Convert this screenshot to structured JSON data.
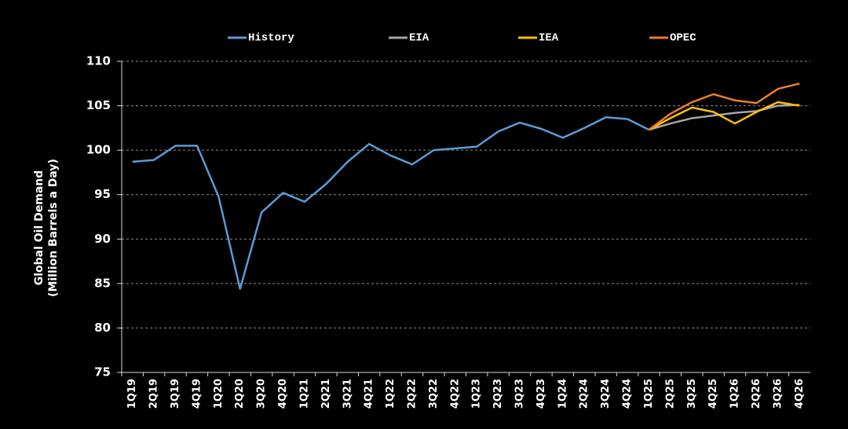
{
  "chart_data": {
    "type": "line",
    "ylabel": [
      "Global Oil Demand",
      "(Million Barrels a Day)"
    ],
    "categories": [
      "1Q19",
      "2Q19",
      "3Q19",
      "4Q19",
      "1Q20",
      "2Q20",
      "3Q20",
      "4Q20",
      "1Q21",
      "2Q21",
      "3Q21",
      "4Q21",
      "1Q22",
      "2Q22",
      "3Q22",
      "4Q22",
      "1Q23",
      "2Q23",
      "3Q23",
      "4Q23",
      "1Q24",
      "2Q24",
      "3Q24",
      "4Q24",
      "1Q25",
      "2Q25",
      "3Q25",
      "4Q25",
      "1Q26",
      "2Q26",
      "3Q26",
      "4Q26"
    ],
    "series": [
      {
        "name": "History",
        "color": "#5b9bd5",
        "values": [
          98.7,
          98.9,
          100.5,
          100.5,
          94.8,
          84.4,
          93.0,
          95.2,
          94.2,
          96.2,
          98.7,
          100.7,
          99.4,
          98.4,
          100.0,
          100.2,
          100.4,
          102.1,
          103.1,
          102.4,
          101.4,
          102.5,
          103.7,
          103.5,
          102.3,
          null,
          null,
          null,
          null,
          null,
          null,
          null
        ]
      },
      {
        "name": "EIA",
        "color": "#a6a6a6",
        "values": [
          null,
          null,
          null,
          null,
          null,
          null,
          null,
          null,
          null,
          null,
          null,
          null,
          null,
          null,
          null,
          null,
          null,
          null,
          null,
          null,
          null,
          null,
          null,
          null,
          102.3,
          103.0,
          103.6,
          103.9,
          104.2,
          104.4,
          105.0,
          105.1
        ]
      },
      {
        "name": "IEA",
        "color": "#ffc000",
        "values": [
          null,
          null,
          null,
          null,
          null,
          null,
          null,
          null,
          null,
          null,
          null,
          null,
          null,
          null,
          null,
          null,
          null,
          null,
          null,
          null,
          null,
          null,
          null,
          null,
          102.3,
          103.6,
          104.8,
          104.3,
          103.0,
          104.3,
          105.4,
          105.0
        ]
      },
      {
        "name": "OPEC",
        "color": "#ed7d31",
        "values": [
          null,
          null,
          null,
          null,
          null,
          null,
          null,
          null,
          null,
          null,
          null,
          null,
          null,
          null,
          null,
          null,
          null,
          null,
          null,
          null,
          null,
          null,
          null,
          null,
          102.3,
          104.1,
          105.4,
          106.3,
          105.6,
          105.3,
          106.9,
          107.5
        ]
      }
    ],
    "ylim": [
      75,
      110
    ],
    "yticks": [
      75,
      80,
      85,
      90,
      95,
      100,
      105,
      110
    ],
    "grid": true,
    "legend": "top"
  }
}
